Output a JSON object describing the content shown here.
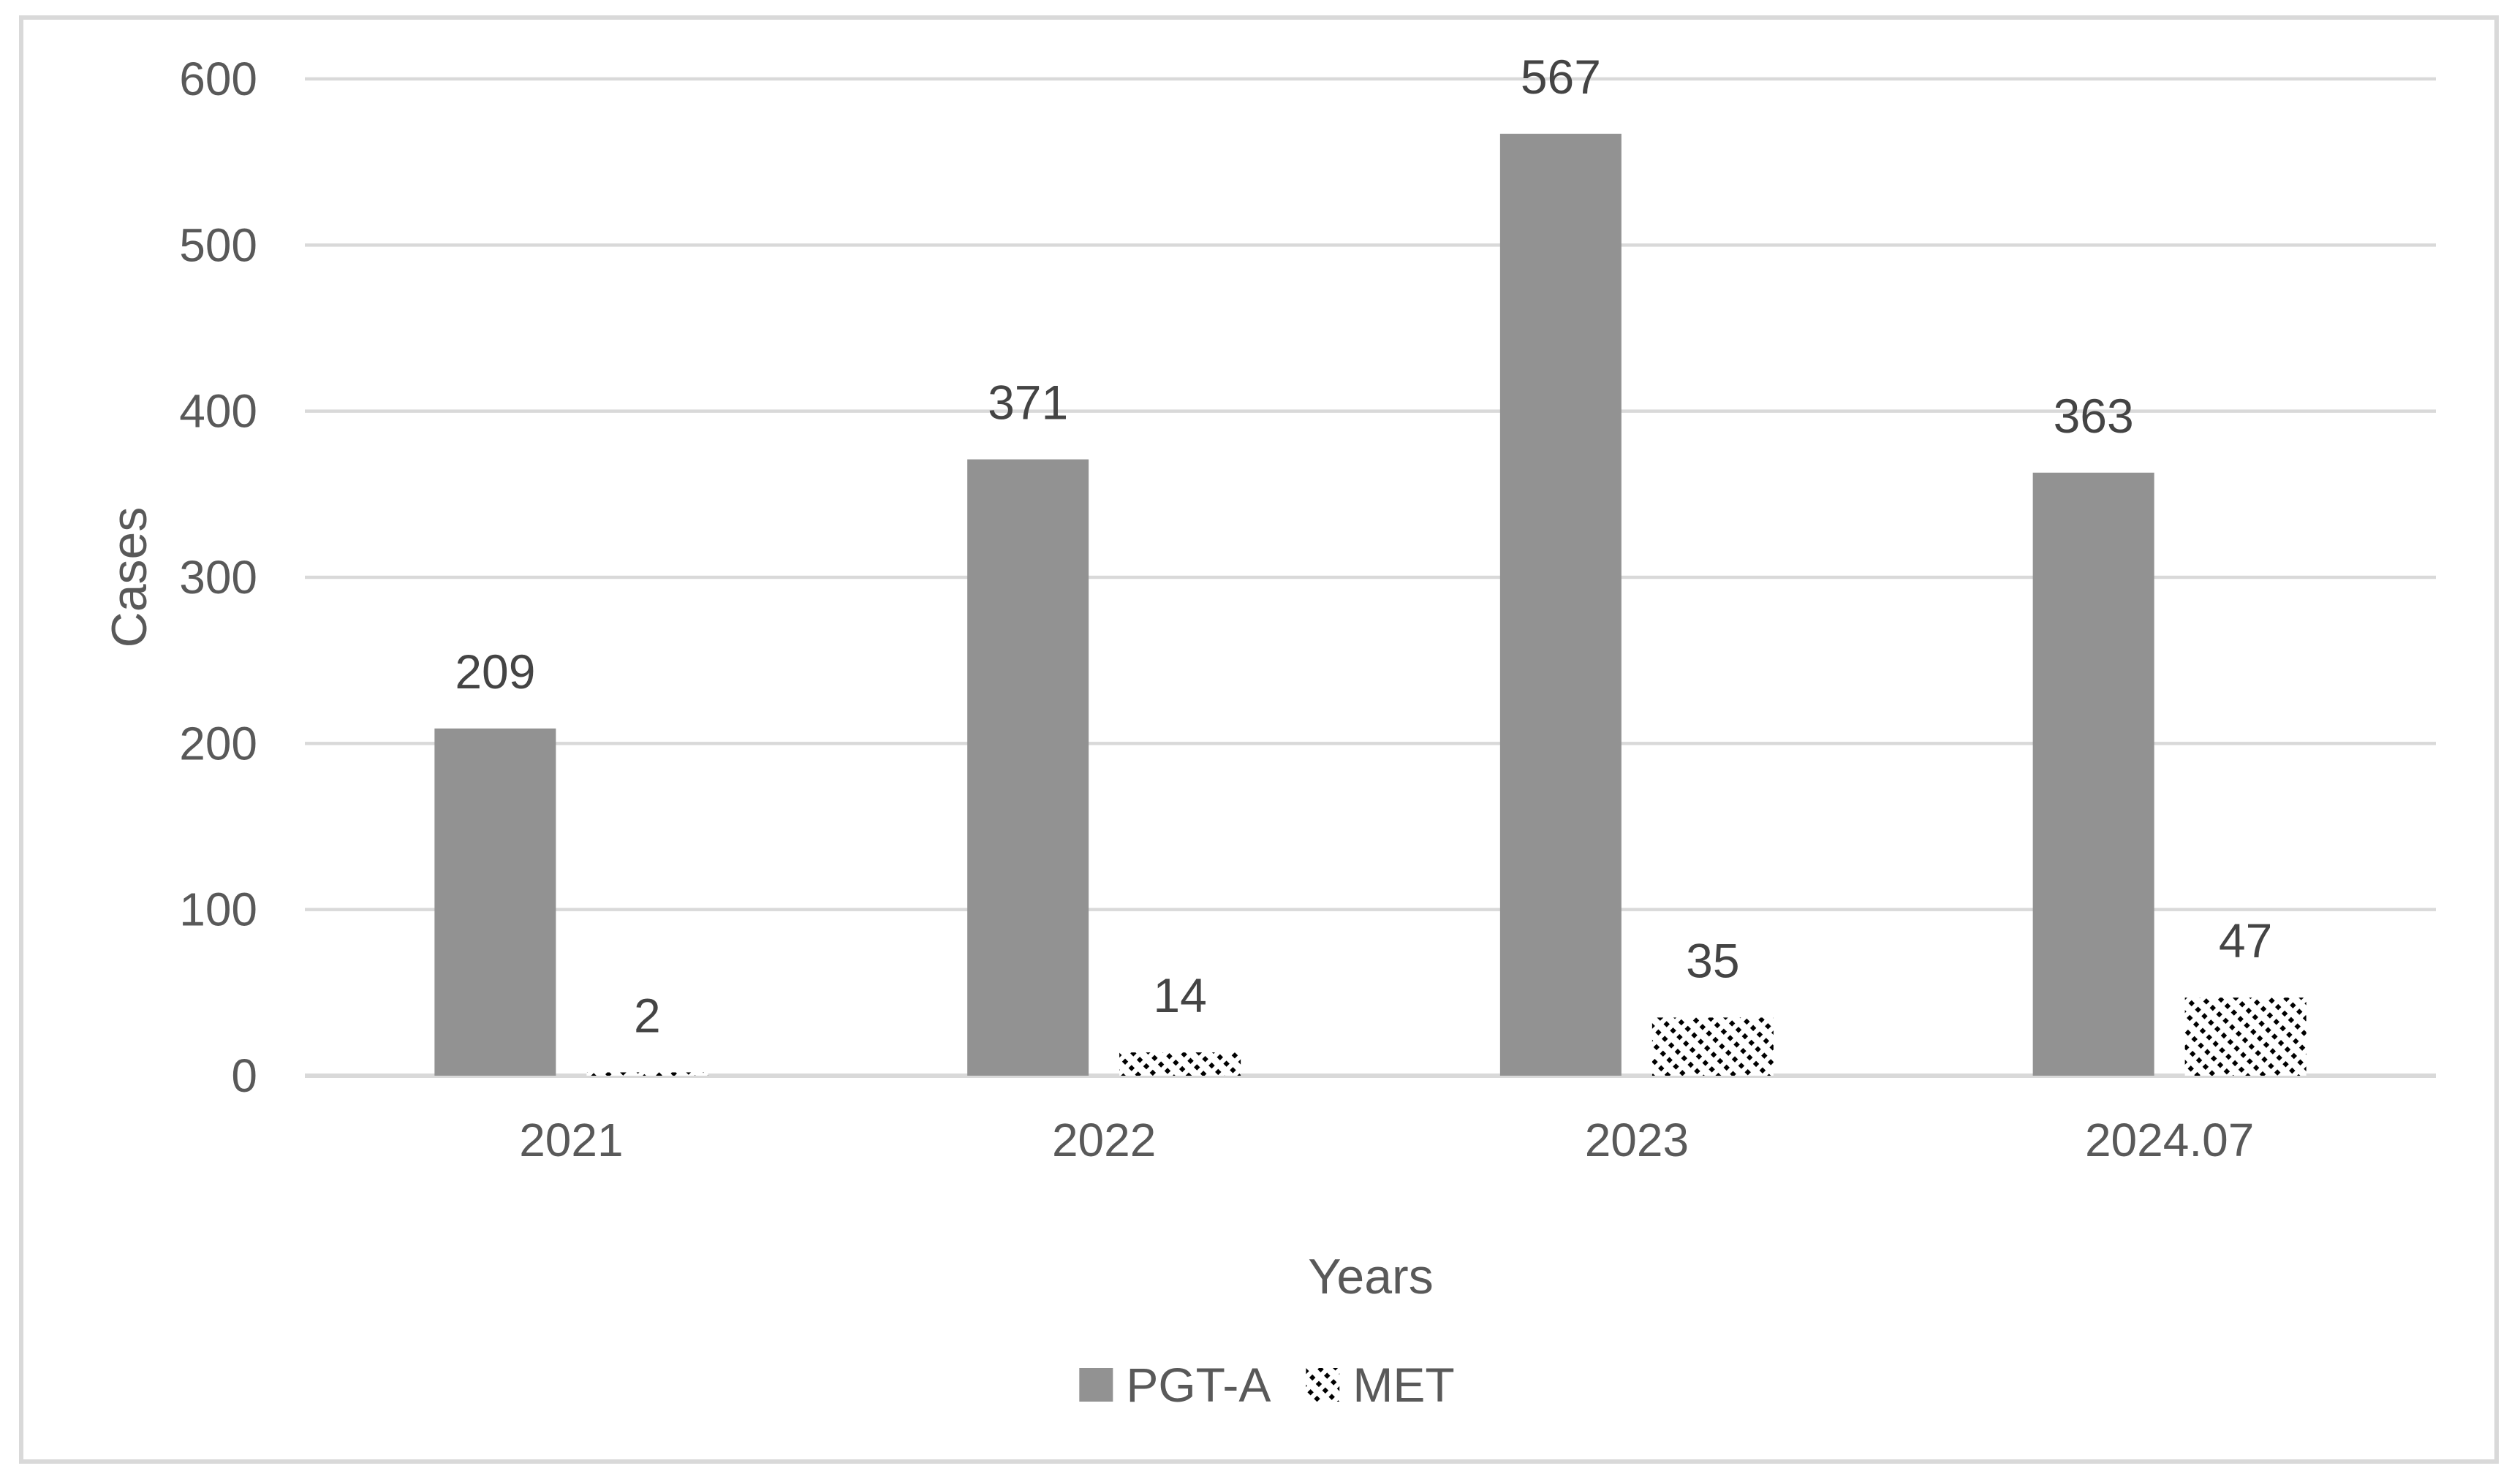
{
  "chart_data": {
    "type": "bar",
    "title": "",
    "categories": [
      "2021",
      "2022",
      "2023",
      "2024.07"
    ],
    "series": [
      {
        "name": "PGT-A",
        "values": [
          209,
          371,
          567,
          363
        ],
        "fill_style": "solid-gray"
      },
      {
        "name": "MET",
        "values": [
          2,
          14,
          35,
          47
        ],
        "fill_style": "diagonal-hatch"
      }
    ],
    "data_labels": {
      "PGT-A": [
        "209",
        "371",
        "567",
        "363"
      ],
      "MET": [
        "2",
        "14",
        "35",
        "47"
      ]
    },
    "xlabel": "Years",
    "ylabel": "Cases",
    "ylim": [
      0,
      600
    ],
    "yticks": [
      0,
      100,
      200,
      300,
      400,
      500,
      600
    ],
    "grid": "horizontal",
    "legend_position": "bottom-center",
    "colors": {
      "bar_gray": "#929292",
      "hatch_line": "#000000",
      "hatch_bg": "#ffffff",
      "gridline": "#d9d9d9",
      "axis_line": "#d9d9d9",
      "axis_text": "#595959",
      "data_label_text": "#444444",
      "frame_border": "#d9d9d9",
      "background": "#ffffff"
    }
  }
}
